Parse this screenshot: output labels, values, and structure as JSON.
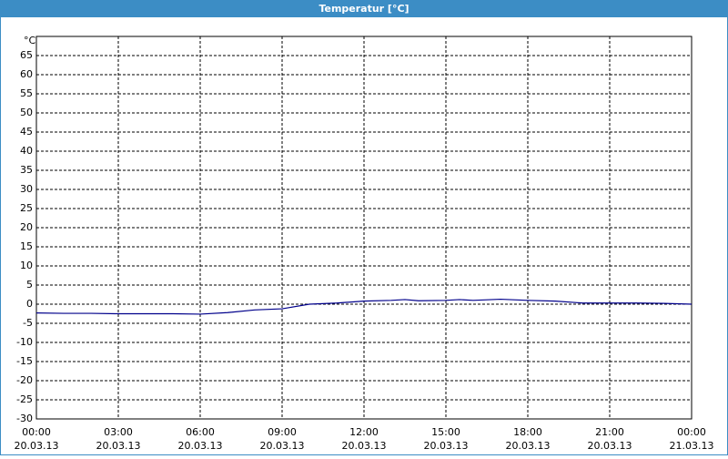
{
  "window_title": "Temperatur [°C]",
  "chart_data": {
    "type": "line",
    "y_unit": "°C",
    "x": [
      0,
      1,
      2,
      3,
      4,
      5,
      6,
      7,
      8,
      9,
      10,
      11,
      12,
      13,
      13.5,
      14,
      15,
      15.5,
      16,
      17,
      18,
      19,
      20,
      21,
      22,
      23,
      24
    ],
    "series": [
      {
        "color": "#00008b",
        "values": [
          -2.3,
          -2.4,
          -2.4,
          -2.5,
          -2.5,
          -2.5,
          -2.6,
          -2.2,
          -1.5,
          -1.2,
          0,
          0.3,
          0.8,
          1,
          1.2,
          0.9,
          1.0,
          1.2,
          1.0,
          1.3,
          1.0,
          0.8,
          0.3,
          0.3,
          0.3,
          0.2,
          0
        ]
      }
    ],
    "xlim": [
      0,
      24
    ],
    "xticks": [
      {
        "value": 0,
        "label": "00:00",
        "date": "20.03.13"
      },
      {
        "value": 3,
        "label": "03:00",
        "date": "20.03.13"
      },
      {
        "value": 6,
        "label": "06:00",
        "date": "20.03.13"
      },
      {
        "value": 9,
        "label": "09:00",
        "date": "20.03.13"
      },
      {
        "value": 12,
        "label": "12:00",
        "date": "20.03.13"
      },
      {
        "value": 15,
        "label": "15:00",
        "date": "20.03.13"
      },
      {
        "value": 18,
        "label": "18:00",
        "date": "20.03.13"
      },
      {
        "value": 21,
        "label": "21:00",
        "date": "20.03.13"
      },
      {
        "value": 24,
        "label": "00:00",
        "date": "21.03.13"
      }
    ],
    "ylim": [
      -30,
      70
    ],
    "yticks": [
      -30,
      -25,
      -20,
      -15,
      -10,
      -5,
      0,
      5,
      10,
      15,
      20,
      25,
      30,
      35,
      40,
      45,
      50,
      55,
      60,
      65
    ],
    "grid": true
  }
}
